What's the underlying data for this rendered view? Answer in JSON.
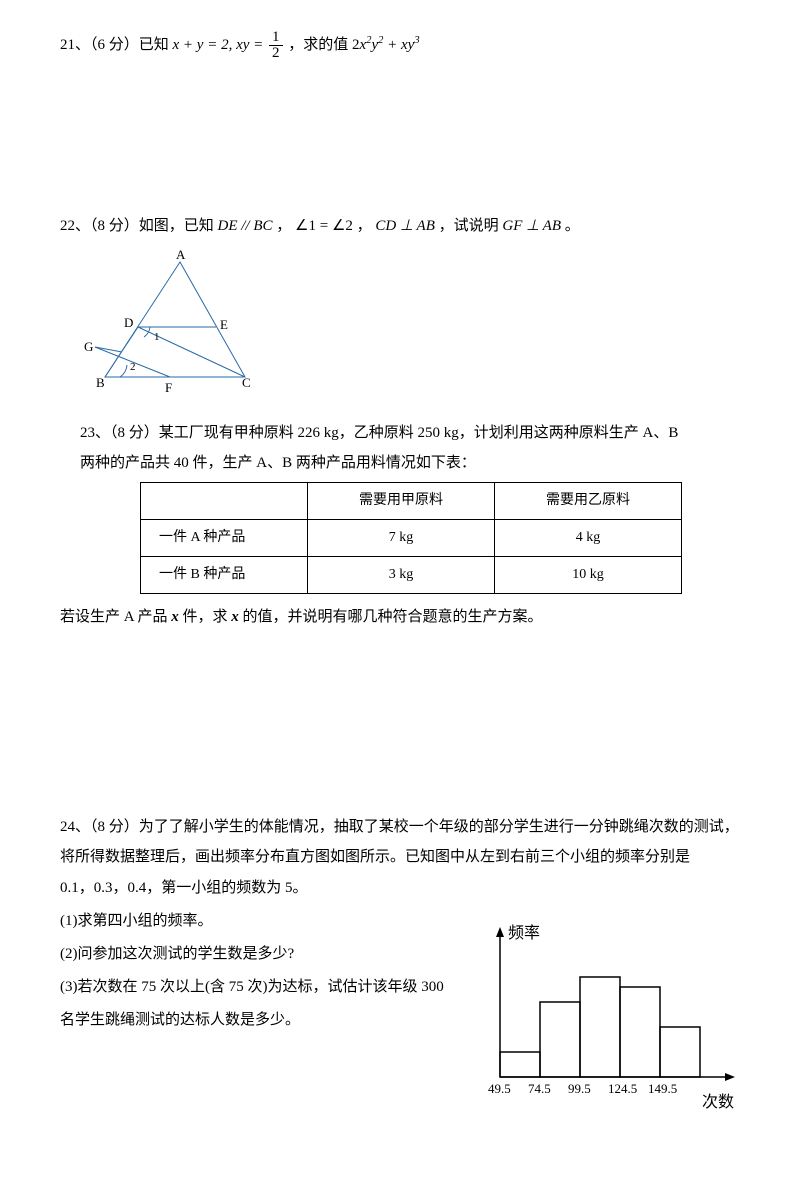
{
  "q21": {
    "label": "21、（6 分）已知",
    "eq_left": "x + y = 2, xy = ",
    "frac_num": "1",
    "frac_den": "2",
    "mid": "，求的值",
    "eq_right_prefix": "2",
    "eq_right": "x² y² + xy³"
  },
  "q22": {
    "label": "22、（8 分）如图，已知",
    "p1": "DE // BC",
    "c": "，",
    "p2": "∠1 = ∠2",
    "c2": "，",
    "p3": "CD ⊥ AB",
    "mid": "，试说明",
    "p4": "GF ⊥ AB",
    "end": "。",
    "labels": {
      "A": "A",
      "B": "B",
      "C": "C",
      "D": "D",
      "E": "E",
      "F": "F",
      "G": "G",
      "1": "1",
      "2": "2"
    }
  },
  "q23": {
    "line1": "23、（8 分）某工厂现有甲种原料 226   kg，乙种原料 250   kg，计划利用这两种原料生产 A、B",
    "line2": "两种的产品共 40 件，生产 A、B 两种产品用料情况如下表：",
    "table": {
      "h1": "",
      "h2": "需要用甲原料",
      "h3": "需要用乙原料",
      "r1c1": "一件 A 种产品",
      "r1c2": "7 kg",
      "r1c3": "4 kg",
      "r2c1": "一件 B 种产品",
      "r2c2": "3 kg",
      "r2c3": "10 kg"
    },
    "line3a": "若设生产 A 产品 ",
    "xbold": "x",
    "line3b": " 件，求 ",
    "line3c": " 的值，并说明有哪几种符合题意的生产方案。"
  },
  "q24": {
    "line1": "24、（8 分）为了了解小学生的体能情况，抽取了某校一个年级的部分学生进行一分钟跳绳次数的测试，",
    "line2": "将所得数据整理后，画出频率分布直方图如图所示。已知图中从左到右前三个小组的频率分别是",
    "line3": "0.1，0.3，0.4，第一小组的频数为 5。",
    "line4": "(1)求第四小组的频率。",
    "line5": "(2)问参加这次测试的学生数是多少?",
    "line6": "(3)若次数在 75 次以上(含 75 次)为达标，试估计该年级 300",
    "line7": "名学生跳绳测试的达标人数是多少。",
    "chart": {
      "ylabel": "频率",
      "xlabel": "次数",
      "ticks": [
        "49.5",
        "74.5",
        "99.5",
        "124.5",
        "149.5"
      ],
      "bars": [
        25,
        75,
        100,
        90,
        50
      ]
    }
  },
  "colors": {
    "line": "#2a6aa8",
    "text": "#000000"
  }
}
